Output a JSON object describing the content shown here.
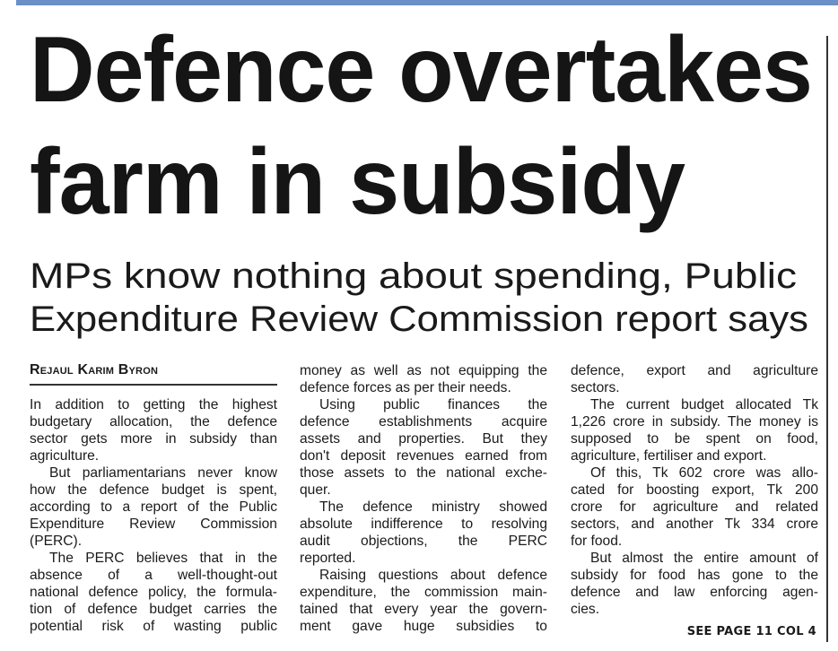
{
  "accent_color": "#6b8fc7",
  "headline": {
    "line1": "Defence overtakes",
    "line2": "farm in subsidy"
  },
  "subhead": {
    "line1": "MPs know nothing about spending, Public",
    "line2": "Expenditure Review Commission report says"
  },
  "byline": "Rejaul Karim Byron",
  "columns": [
    [
      {
        "indent": false,
        "continues": false,
        "lines": [
          "In addition to getting the highest",
          "budgetary allocation, the defence",
          "sector gets more in subsidy than",
          "agriculture."
        ]
      },
      {
        "indent": true,
        "continues": false,
        "lines": [
          "But parliamentarians never know",
          "how the defence budget is spent,",
          "according to a report of the Public",
          "Expenditure Review Commission",
          "(PERC)."
        ]
      },
      {
        "indent": true,
        "continues": true,
        "lines": [
          "The PERC believes that in the",
          "absence of a well-thought-out",
          "national defence policy, the formula-",
          "tion of defence budget carries the",
          "potential risk of wasting public"
        ]
      }
    ],
    [
      {
        "indent": false,
        "continues": false,
        "lines": [
          "money as well as not equipping the",
          "defence forces as per their needs."
        ]
      },
      {
        "indent": true,
        "continues": false,
        "lines": [
          "Using public finances the",
          "defence establishments acquire",
          "assets and properties. But they",
          "don't deposit revenues earned from",
          "those assets to the national exche-",
          "quer."
        ]
      },
      {
        "indent": true,
        "continues": false,
        "lines": [
          "The defence ministry showed",
          "absolute indifference to resolving",
          "audit objections, the PERC",
          "reported."
        ]
      },
      {
        "indent": true,
        "continues": true,
        "lines": [
          "Raising questions about defence",
          "expenditure, the commission main-",
          "tained that every year the govern-",
          "ment gave huge subsidies to"
        ]
      }
    ],
    [
      {
        "indent": false,
        "continues": false,
        "lines": [
          "defence, export and agriculture",
          "sectors."
        ]
      },
      {
        "indent": true,
        "continues": false,
        "lines": [
          "The current budget allocated Tk",
          "1,226 crore in subsidy. The money is",
          "supposed to be spent on food,",
          "agriculture, fertiliser and export."
        ]
      },
      {
        "indent": true,
        "continues": false,
        "lines": [
          "Of this, Tk 602 crore was allo-",
          "cated for boosting export, Tk 200",
          "crore for agriculture and related",
          "sectors, and another Tk 334 crore",
          "for food."
        ]
      },
      {
        "indent": true,
        "continues": false,
        "lines": [
          "But almost the entire amount of",
          "subsidy for food has gone to the",
          "defence and law enforcing agen-",
          "cies."
        ]
      }
    ]
  ],
  "jump_line": "SEE PAGE 11 COL 4"
}
